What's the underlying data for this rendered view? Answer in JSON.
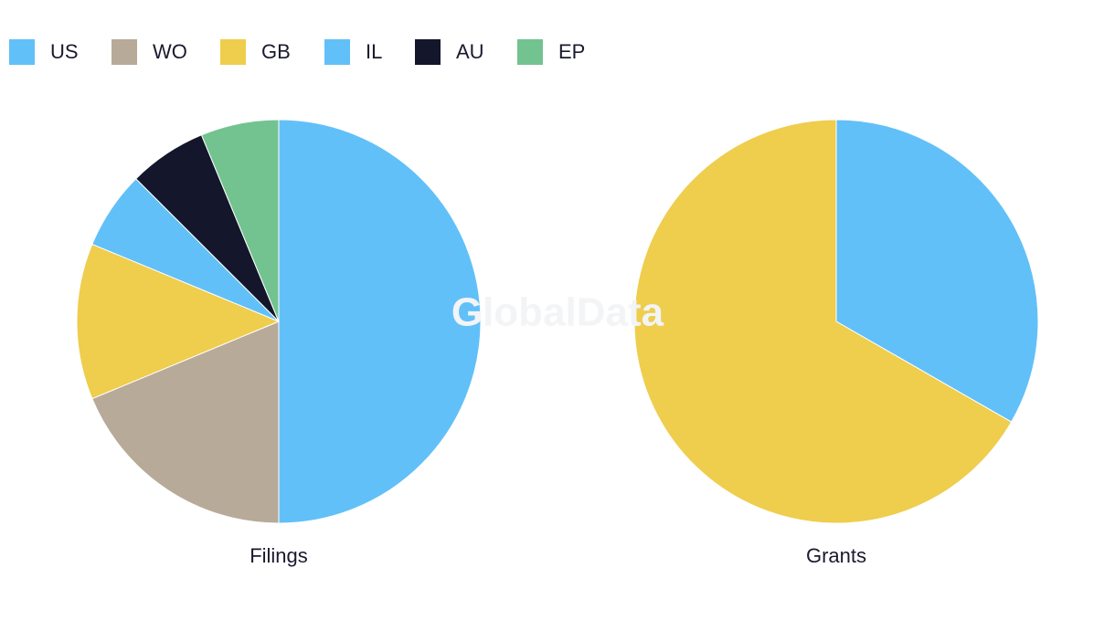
{
  "watermark": "GlobalData",
  "chart_data": [
    {
      "type": "pie",
      "title": "Filings",
      "categories": [
        "US",
        "WO",
        "GB",
        "IL",
        "AU",
        "EP"
      ],
      "values": [
        50,
        18.75,
        12.5,
        6.25,
        6.25,
        6.25
      ],
      "colors": [
        "#62c0f8",
        "#b8aa98",
        "#efcd4d",
        "#62c0f8",
        "#14162b",
        "#73c391"
      ]
    },
    {
      "type": "pie",
      "title": "Grants",
      "categories": [
        "US",
        "GB"
      ],
      "values": [
        33.3,
        66.7
      ],
      "colors": [
        "#62c0f8",
        "#efcd4d"
      ]
    }
  ]
}
